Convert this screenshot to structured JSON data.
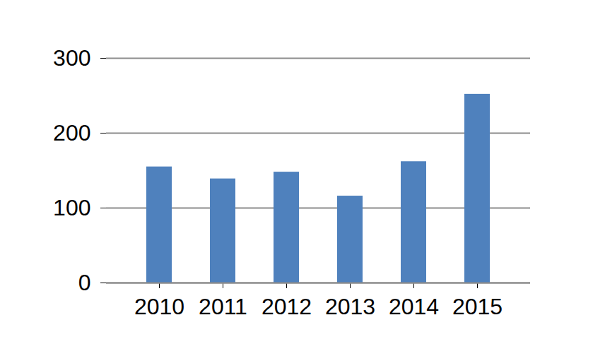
{
  "chart_data": {
    "type": "bar",
    "categories": [
      "2010",
      "2011",
      "2012",
      "2013",
      "2014",
      "2015"
    ],
    "values": [
      155,
      139,
      148,
      116,
      162,
      252
    ],
    "color": "#4f81bd",
    "ylim": [
      0,
      300
    ],
    "yticks": [
      0,
      100,
      200,
      300
    ],
    "grid": true
  }
}
